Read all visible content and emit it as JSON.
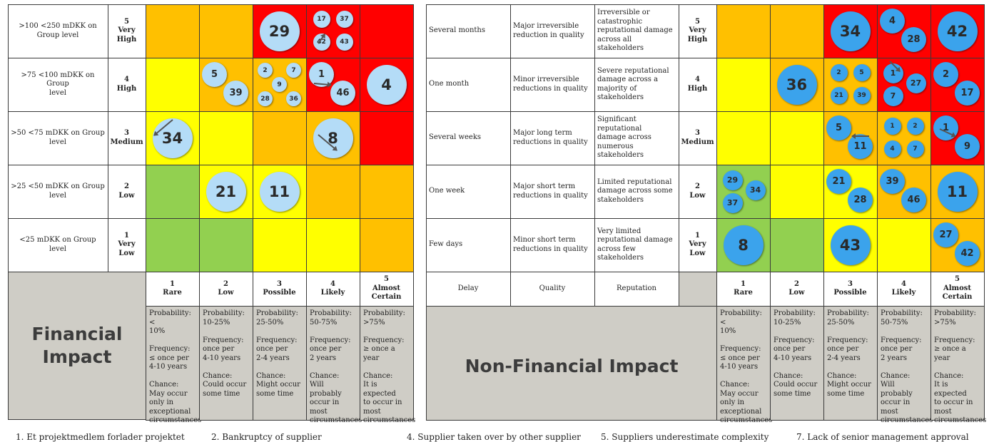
{
  "colors": {
    "green": "#92d050",
    "yellow": "#ffff00",
    "orange": "#ffc000",
    "red": "#ff0000",
    "grey": "#cfcdc6",
    "bubble_light": "#b4dcf7",
    "bubble_dark": "#3ba3ec"
  },
  "heat_map": [
    [
      "orange",
      "orange",
      "red",
      "red",
      "red"
    ],
    [
      "yellow",
      "orange",
      "orange",
      "red",
      "red"
    ],
    [
      "yellow",
      "yellow",
      "orange",
      "orange",
      "red"
    ],
    [
      "green",
      "yellow",
      "yellow",
      "orange",
      "orange"
    ],
    [
      "green",
      "green",
      "yellow",
      "yellow",
      "orange"
    ]
  ],
  "severity_levels": [
    {
      "num": "5",
      "name": "Very\nHigh"
    },
    {
      "num": "4",
      "name": "High"
    },
    {
      "num": "3",
      "name": "Medium"
    },
    {
      "num": "2",
      "name": "Low"
    },
    {
      "num": "1",
      "name": "Very\nLow"
    }
  ],
  "likelihood_levels": [
    {
      "num": "1",
      "name": "Rare",
      "probability": "Probability: <\n10%",
      "frequency": "Frequency:\n≤ once per\n4-10 years",
      "chance": "Chance:\nMay occur\nonly in\nexceptional\ncircumstances"
    },
    {
      "num": "2",
      "name": "Low",
      "probability": "Probability:\n10-25%",
      "frequency": "Frequency:\nonce per\n4-10 years",
      "chance": "Chance:\nCould occur\nsome time"
    },
    {
      "num": "3",
      "name": "Possible",
      "probability": "Probability:\n25-50%",
      "frequency": "Frequency:\nonce per\n2-4 years",
      "chance": "Chance:\nMight occur\nsome time"
    },
    {
      "num": "4",
      "name": "Likely",
      "probability": "Probability:\n50-75%",
      "frequency": "Frequency:\nonce per\n2 years",
      "chance": "Chance:\nWill probably\noccur in most\ncircumstances"
    },
    {
      "num": "5",
      "name": "Almost\nCertain",
      "probability": "Probability:\n>75%",
      "frequency": "Frequency:\n≥ once a year",
      "chance": "Chance:\nIt is expected\nto occur in\nmost\ncircumstances"
    }
  ],
  "financial": {
    "title": "Financial\nImpact",
    "impact_labels": [
      ">100 <250 mDKK on\nGroup level",
      ">75 <100 mDKK on Group\nlevel",
      ">50 <75 mDKK on Group\nlevel",
      ">25 <50 mDKK on Group\nlevel",
      "<25 mDKK on Group level"
    ],
    "bubbles": [
      {
        "label": "29",
        "row": 0,
        "col": 2
      },
      {
        "label": "17",
        "row": 0,
        "col": 3
      },
      {
        "label": "37",
        "row": 0,
        "col": 3
      },
      {
        "label": "42",
        "row": 0,
        "col": 3
      },
      {
        "label": "43",
        "row": 0,
        "col": 3
      },
      {
        "label": "5",
        "row": 1,
        "col": 1
      },
      {
        "label": "39",
        "row": 1,
        "col": 1
      },
      {
        "label": "2",
        "row": 1,
        "col": 2
      },
      {
        "label": "7",
        "row": 1,
        "col": 2
      },
      {
        "label": "9",
        "row": 1,
        "col": 2
      },
      {
        "label": "28",
        "row": 1,
        "col": 2
      },
      {
        "label": "36",
        "row": 1,
        "col": 2
      },
      {
        "label": "1",
        "row": 1,
        "col": 3
      },
      {
        "label": "46",
        "row": 1,
        "col": 3
      },
      {
        "label": "4",
        "row": 1,
        "col": 4
      },
      {
        "label": "34",
        "row": 2,
        "col": 0
      },
      {
        "label": "8",
        "row": 2,
        "col": 3
      },
      {
        "label": "21",
        "row": 3,
        "col": 1
      },
      {
        "label": "11",
        "row": 3,
        "col": 2
      }
    ]
  },
  "non_financial": {
    "title": "Non-Financial Impact",
    "column_headers": [
      "Delay",
      "Quality",
      "Reputation"
    ],
    "rows": [
      {
        "delay": "Several months",
        "quality": "Major irreversible\nreduction in quality",
        "reputation": "Irreversible or\ncatastrophic\nreputational damage\nacross all stakeholders"
      },
      {
        "delay": "One month",
        "quality": "Minor irreversible\nreductions in quality",
        "reputation": "Severe reputational\ndamage across a\nmajority of\nstakeholders"
      },
      {
        "delay": "Several weeks",
        "quality": "Major long term\nreductions in quality",
        "reputation": "Significant reputational\ndamage across\nnumerous stakeholders"
      },
      {
        "delay": "One week",
        "quality": "Major short term\nreductions in quality",
        "reputation": "Limited reputational\ndamage across some\nstakeholders"
      },
      {
        "delay": "Few days",
        "quality": "Minor short term\nreductions in quality",
        "reputation": "Very limited\nreputational damage\nacross few stakeholders"
      }
    ],
    "bubbles": [
      {
        "label": "34",
        "row": 0,
        "col": 2
      },
      {
        "label": "4",
        "row": 0,
        "col": 3
      },
      {
        "label": "28",
        "row": 0,
        "col": 3
      },
      {
        "label": "42",
        "row": 0,
        "col": 4
      },
      {
        "label": "36",
        "row": 1,
        "col": 1
      },
      {
        "label": "2",
        "row": 1,
        "col": 2
      },
      {
        "label": "5",
        "row": 1,
        "col": 2
      },
      {
        "label": "21",
        "row": 1,
        "col": 2
      },
      {
        "label": "39",
        "row": 1,
        "col": 2
      },
      {
        "label": "1",
        "row": 1,
        "col": 3
      },
      {
        "label": "27",
        "row": 1,
        "col": 3
      },
      {
        "label": "7",
        "row": 1,
        "col": 3
      },
      {
        "label": "2",
        "row": 1,
        "col": 4
      },
      {
        "label": "17",
        "row": 1,
        "col": 4
      },
      {
        "label": "5",
        "row": 2,
        "col": 2
      },
      {
        "label": "11",
        "row": 2,
        "col": 2
      },
      {
        "label": "1",
        "row": 2,
        "col": 3
      },
      {
        "label": "2",
        "row": 2,
        "col": 3
      },
      {
        "label": "4",
        "row": 2,
        "col": 3
      },
      {
        "label": "7",
        "row": 2,
        "col": 3
      },
      {
        "label": "1",
        "row": 2,
        "col": 4
      },
      {
        "label": "9",
        "row": 2,
        "col": 4
      },
      {
        "label": "29",
        "row": 3,
        "col": 0
      },
      {
        "label": "34",
        "row": 3,
        "col": 0
      },
      {
        "label": "37",
        "row": 3,
        "col": 0
      },
      {
        "label": "21",
        "row": 3,
        "col": 2
      },
      {
        "label": "28",
        "row": 3,
        "col": 2
      },
      {
        "label": "39",
        "row": 3,
        "col": 3
      },
      {
        "label": "46",
        "row": 3,
        "col": 3
      },
      {
        "label": "11",
        "row": 3,
        "col": 4
      },
      {
        "label": "8",
        "row": 4,
        "col": 0
      },
      {
        "label": "43",
        "row": 4,
        "col": 2
      },
      {
        "label": "27",
        "row": 4,
        "col": 4
      },
      {
        "label": "42",
        "row": 4,
        "col": 4
      }
    ]
  },
  "legend": [
    "1. Et projektmedlem forlader projektet",
    "2. Bankruptcy of supplier",
    "4. Supplier taken over by other supplier",
    "5. Suppliers underestimate complexity",
    "7. Lack of senior management approval"
  ]
}
